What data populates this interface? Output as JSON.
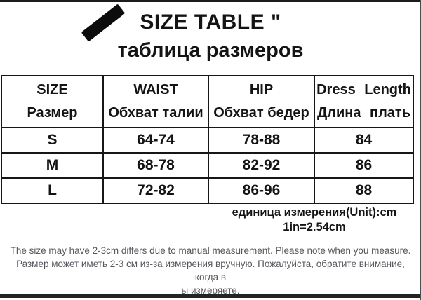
{
  "page": {
    "title": "SIZE TABLE \"",
    "subtitle": "таблица размеров"
  },
  "table": {
    "columns": [
      {
        "en": "SIZE",
        "ru": "Размер"
      },
      {
        "en": "WAIST",
        "ru": "Обхват талии"
      },
      {
        "en": "HIP",
        "ru": "Обхват бедер"
      },
      {
        "en": "Dress Length",
        "ru": "Длина плать"
      }
    ],
    "rows": [
      {
        "size": "S",
        "waist": "64-74",
        "hip": "78-88",
        "length": "84"
      },
      {
        "size": "M",
        "waist": "68-78",
        "hip": "82-92",
        "length": "86"
      },
      {
        "size": "L",
        "waist": "72-82",
        "hip": "86-96",
        "length": "88"
      }
    ]
  },
  "unit_note": {
    "line1": "единица измерения(Unit):cm",
    "line2": "1in=2.54cm"
  },
  "footer": {
    "line1": "The size may have 2-3cm differs due to manual measurement. Please note when you measure.",
    "line2": "Размер может иметь 2-3 см из-за измерения вручную. Пожалуйста, обратите внимание, когда в",
    "line3": "ы измеряете."
  },
  "colors": {
    "text": "#141414",
    "grid": "#161616",
    "footer_text": "#57575e",
    "divider": "#1c1c1c"
  }
}
